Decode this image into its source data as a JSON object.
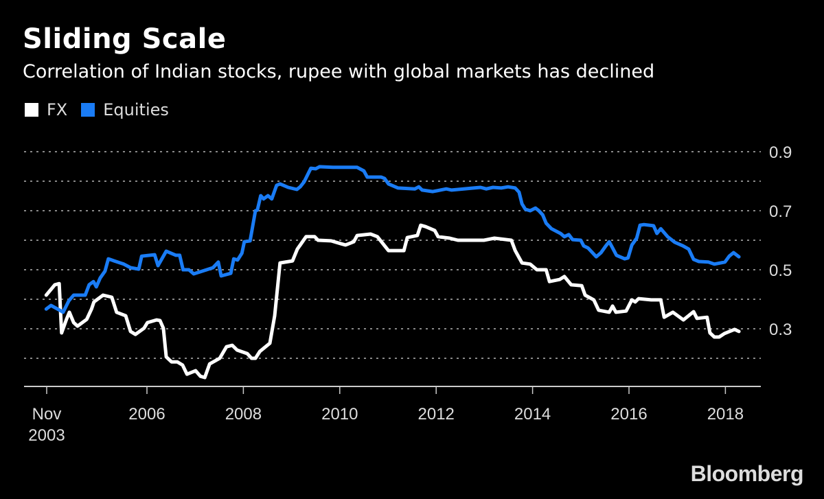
{
  "chart_data": {
    "type": "line",
    "title": "Sliding Scale",
    "subtitle": "Correlation of Indian stocks, rupee with global markets has declined",
    "xlabel": "",
    "ylabel": "",
    "xlim": [
      2003.9,
      2018.3
    ],
    "ylim": [
      0.1,
      0.9
    ],
    "grid": true,
    "legend_position": "top-left",
    "x_tick_labels": [
      {
        "year": 2003.83,
        "label": "Nov",
        "label2": "2003"
      },
      {
        "year": 2006,
        "label": "2006"
      },
      {
        "year": 2008,
        "label": "2008"
      },
      {
        "year": 2010,
        "label": "2010"
      },
      {
        "year": 2012,
        "label": "2012"
      },
      {
        "year": 2014,
        "label": "2014"
      },
      {
        "year": 2016,
        "label": "2016"
      },
      {
        "year": 2018,
        "label": "2018"
      }
    ],
    "y_gridlines": [
      0.9,
      0.8,
      0.7,
      0.6,
      0.5,
      0.4,
      0.3,
      0.2
    ],
    "y_tick_labels": [
      {
        "value": 0.9,
        "label": "0.9"
      },
      {
        "value": 0.7,
        "label": "0.7"
      },
      {
        "value": 0.5,
        "label": "0.5"
      },
      {
        "value": 0.3,
        "label": "0.3"
      }
    ],
    "series": [
      {
        "name": "FX",
        "color": "#ffffff",
        "points": [
          [
            2003.91,
            0.414
          ],
          [
            2004.09,
            0.449
          ],
          [
            2004.18,
            0.453
          ],
          [
            2004.23,
            0.286
          ],
          [
            2004.33,
            0.332
          ],
          [
            2004.39,
            0.356
          ],
          [
            2004.48,
            0.321
          ],
          [
            2004.56,
            0.309
          ],
          [
            2004.75,
            0.332
          ],
          [
            2004.85,
            0.367
          ],
          [
            2004.9,
            0.391
          ],
          [
            2005.09,
            0.414
          ],
          [
            2005.27,
            0.407
          ],
          [
            2005.37,
            0.356
          ],
          [
            2005.56,
            0.344
          ],
          [
            2005.66,
            0.291
          ],
          [
            2005.76,
            0.281
          ],
          [
            2005.94,
            0.302
          ],
          [
            2006.01,
            0.321
          ],
          [
            2006.2,
            0.33
          ],
          [
            2006.27,
            0.328
          ],
          [
            2006.34,
            0.302
          ],
          [
            2006.4,
            0.205
          ],
          [
            2006.51,
            0.188
          ],
          [
            2006.63,
            0.188
          ],
          [
            2006.74,
            0.177
          ],
          [
            2006.83,
            0.146
          ],
          [
            2007.01,
            0.158
          ],
          [
            2007.11,
            0.139
          ],
          [
            2007.2,
            0.135
          ],
          [
            2007.3,
            0.181
          ],
          [
            2007.51,
            0.2
          ],
          [
            2007.65,
            0.239
          ],
          [
            2007.77,
            0.244
          ],
          [
            2007.87,
            0.228
          ],
          [
            2008.08,
            0.216
          ],
          [
            2008.17,
            0.2
          ],
          [
            2008.25,
            0.2
          ],
          [
            2008.34,
            0.223
          ],
          [
            2008.55,
            0.251
          ],
          [
            2008.65,
            0.344
          ],
          [
            2008.76,
            0.523
          ],
          [
            2009.02,
            0.53
          ],
          [
            2009.12,
            0.57
          ],
          [
            2009.19,
            0.586
          ],
          [
            2009.3,
            0.612
          ],
          [
            2009.48,
            0.612
          ],
          [
            2009.55,
            0.6
          ],
          [
            2009.82,
            0.598
          ],
          [
            2010.03,
            0.588
          ],
          [
            2010.12,
            0.584
          ],
          [
            2010.29,
            0.595
          ],
          [
            2010.36,
            0.616
          ],
          [
            2010.64,
            0.621
          ],
          [
            2010.78,
            0.612
          ],
          [
            2011.01,
            0.565
          ],
          [
            2011.33,
            0.565
          ],
          [
            2011.4,
            0.609
          ],
          [
            2011.61,
            0.616
          ],
          [
            2011.68,
            0.651
          ],
          [
            2011.78,
            0.646
          ],
          [
            2011.97,
            0.633
          ],
          [
            2012.04,
            0.612
          ],
          [
            2012.28,
            0.607
          ],
          [
            2012.45,
            0.6
          ],
          [
            2012.78,
            0.6
          ],
          [
            2012.99,
            0.6
          ],
          [
            2013.21,
            0.607
          ],
          [
            2013.56,
            0.6
          ],
          [
            2013.64,
            0.565
          ],
          [
            2013.78,
            0.523
          ],
          [
            2013.95,
            0.519
          ],
          [
            2014.09,
            0.5
          ],
          [
            2014.28,
            0.5
          ],
          [
            2014.35,
            0.46
          ],
          [
            2014.56,
            0.467
          ],
          [
            2014.66,
            0.477
          ],
          [
            2014.8,
            0.449
          ],
          [
            2015.02,
            0.446
          ],
          [
            2015.09,
            0.414
          ],
          [
            2015.27,
            0.398
          ],
          [
            2015.37,
            0.363
          ],
          [
            2015.59,
            0.356
          ],
          [
            2015.66,
            0.377
          ],
          [
            2015.73,
            0.356
          ],
          [
            2015.94,
            0.36
          ],
          [
            2016.06,
            0.398
          ],
          [
            2016.13,
            0.391
          ],
          [
            2016.2,
            0.402
          ],
          [
            2016.46,
            0.398
          ],
          [
            2016.66,
            0.398
          ],
          [
            2016.73,
            0.339
          ],
          [
            2016.91,
            0.356
          ],
          [
            2017.13,
            0.33
          ],
          [
            2017.34,
            0.358
          ],
          [
            2017.41,
            0.335
          ],
          [
            2017.62,
            0.339
          ],
          [
            2017.68,
            0.286
          ],
          [
            2017.77,
            0.272
          ],
          [
            2017.87,
            0.272
          ],
          [
            2017.98,
            0.284
          ],
          [
            2018.19,
            0.298
          ],
          [
            2018.28,
            0.291
          ]
        ]
      },
      {
        "name": "Equities",
        "color": "#1a7cf5",
        "points": [
          [
            2003.91,
            0.367
          ],
          [
            2004.01,
            0.379
          ],
          [
            2004.19,
            0.363
          ],
          [
            2004.26,
            0.356
          ],
          [
            2004.38,
            0.395
          ],
          [
            2004.48,
            0.414
          ],
          [
            2004.72,
            0.414
          ],
          [
            2004.8,
            0.449
          ],
          [
            2004.89,
            0.46
          ],
          [
            2004.95,
            0.442
          ],
          [
            2005.03,
            0.472
          ],
          [
            2005.13,
            0.495
          ],
          [
            2005.2,
            0.537
          ],
          [
            2005.32,
            0.53
          ],
          [
            2005.52,
            0.519
          ],
          [
            2005.66,
            0.507
          ],
          [
            2005.83,
            0.502
          ],
          [
            2005.89,
            0.546
          ],
          [
            2006.16,
            0.551
          ],
          [
            2006.23,
            0.514
          ],
          [
            2006.4,
            0.563
          ],
          [
            2006.6,
            0.549
          ],
          [
            2006.68,
            0.549
          ],
          [
            2006.75,
            0.5
          ],
          [
            2006.87,
            0.5
          ],
          [
            2006.97,
            0.486
          ],
          [
            2007.2,
            0.498
          ],
          [
            2007.37,
            0.507
          ],
          [
            2007.48,
            0.526
          ],
          [
            2007.54,
            0.479
          ],
          [
            2007.74,
            0.488
          ],
          [
            2007.8,
            0.537
          ],
          [
            2007.88,
            0.533
          ],
          [
            2007.97,
            0.556
          ],
          [
            2008.02,
            0.595
          ],
          [
            2008.14,
            0.598
          ],
          [
            2008.25,
            0.7
          ],
          [
            2008.29,
            0.702
          ],
          [
            2008.36,
            0.751
          ],
          [
            2008.42,
            0.74
          ],
          [
            2008.51,
            0.751
          ],
          [
            2008.59,
            0.74
          ],
          [
            2008.69,
            0.786
          ],
          [
            2008.76,
            0.791
          ],
          [
            2008.93,
            0.779
          ],
          [
            2009.11,
            0.772
          ],
          [
            2009.18,
            0.781
          ],
          [
            2009.26,
            0.798
          ],
          [
            2009.4,
            0.844
          ],
          [
            2009.5,
            0.842
          ],
          [
            2009.58,
            0.849
          ],
          [
            2009.86,
            0.847
          ],
          [
            2010.07,
            0.847
          ],
          [
            2010.36,
            0.847
          ],
          [
            2010.5,
            0.835
          ],
          [
            2010.57,
            0.814
          ],
          [
            2010.86,
            0.814
          ],
          [
            2010.93,
            0.809
          ],
          [
            2011.01,
            0.791
          ],
          [
            2011.21,
            0.777
          ],
          [
            2011.56,
            0.774
          ],
          [
            2011.64,
            0.781
          ],
          [
            2011.71,
            0.77
          ],
          [
            2011.93,
            0.765
          ],
          [
            2012.21,
            0.774
          ],
          [
            2012.32,
            0.77
          ],
          [
            2012.78,
            0.777
          ],
          [
            2012.92,
            0.779
          ],
          [
            2013.04,
            0.774
          ],
          [
            2013.18,
            0.779
          ],
          [
            2013.35,
            0.777
          ],
          [
            2013.49,
            0.781
          ],
          [
            2013.64,
            0.777
          ],
          [
            2013.72,
            0.763
          ],
          [
            2013.78,
            0.723
          ],
          [
            2013.85,
            0.705
          ],
          [
            2013.95,
            0.7
          ],
          [
            2014.06,
            0.709
          ],
          [
            2014.13,
            0.7
          ],
          [
            2014.21,
            0.686
          ],
          [
            2014.28,
            0.658
          ],
          [
            2014.39,
            0.639
          ],
          [
            2014.58,
            0.623
          ],
          [
            2014.66,
            0.612
          ],
          [
            2014.75,
            0.619
          ],
          [
            2014.83,
            0.602
          ],
          [
            2015.0,
            0.6
          ],
          [
            2015.06,
            0.581
          ],
          [
            2015.15,
            0.574
          ],
          [
            2015.23,
            0.56
          ],
          [
            2015.32,
            0.544
          ],
          [
            2015.42,
            0.558
          ],
          [
            2015.52,
            0.581
          ],
          [
            2015.59,
            0.595
          ],
          [
            2015.66,
            0.574
          ],
          [
            2015.74,
            0.549
          ],
          [
            2015.91,
            0.537
          ],
          [
            2015.98,
            0.54
          ],
          [
            2016.06,
            0.584
          ],
          [
            2016.16,
            0.607
          ],
          [
            2016.23,
            0.651
          ],
          [
            2016.31,
            0.653
          ],
          [
            2016.51,
            0.649
          ],
          [
            2016.58,
            0.623
          ],
          [
            2016.66,
            0.639
          ],
          [
            2016.8,
            0.612
          ],
          [
            2016.95,
            0.593
          ],
          [
            2017.12,
            0.581
          ],
          [
            2017.24,
            0.57
          ],
          [
            2017.34,
            0.535
          ],
          [
            2017.45,
            0.528
          ],
          [
            2017.65,
            0.526
          ],
          [
            2017.77,
            0.519
          ],
          [
            2017.99,
            0.526
          ],
          [
            2018.08,
            0.546
          ],
          [
            2018.17,
            0.558
          ],
          [
            2018.28,
            0.544
          ]
        ]
      }
    ]
  },
  "logo": "Bloomberg"
}
